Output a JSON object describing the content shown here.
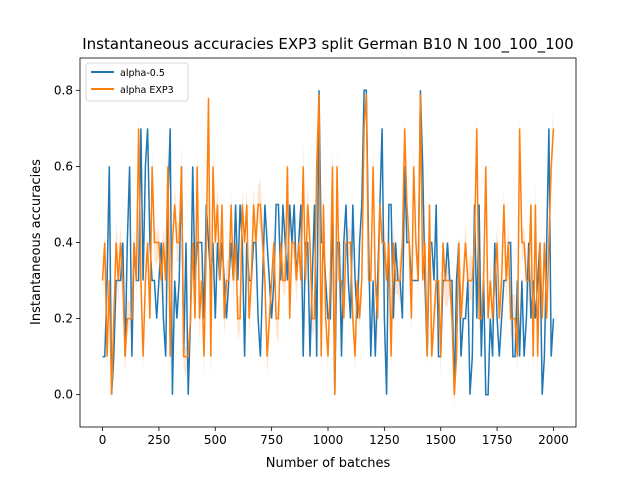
{
  "chart_data": {
    "type": "line",
    "title": "Instantaneous accuracies EXP3 split German B10 N 100_100_100",
    "xlabel": "Number of batches",
    "ylabel": "Instantaneous accuracies",
    "xlim": [
      -100,
      2100
    ],
    "ylim": [
      -0.085,
      0.885
    ],
    "xticks": [
      0,
      250,
      500,
      750,
      1000,
      1250,
      1500,
      1750,
      2000
    ],
    "xtick_labels": [
      "0",
      "250",
      "500",
      "750",
      "1000",
      "1250",
      "1500",
      "1750",
      "2000"
    ],
    "yticks": [
      0.0,
      0.2,
      0.4,
      0.6,
      0.8
    ],
    "ytick_labels": [
      "0.0",
      "0.2",
      "0.4",
      "0.6",
      "0.8"
    ],
    "grid": false,
    "legend_position": "top-left",
    "series": [
      {
        "name": "alpha-0.5",
        "color": "#1f77b4",
        "step": 10,
        "value_levels": [
          0.0,
          0.1,
          0.2,
          0.3,
          0.4,
          0.5,
          0.6,
          0.7,
          0.8
        ],
        "typical_range": [
          0.1,
          0.6
        ],
        "peaks": [
          {
            "x": 30,
            "y": 0.6
          },
          {
            "x": 170,
            "y": 0.7
          },
          {
            "x": 300,
            "y": 0.7
          },
          {
            "x": 960,
            "y": 0.8
          },
          {
            "x": 1170,
            "y": 0.8
          },
          {
            "x": 1410,
            "y": 0.8
          },
          {
            "x": 1980,
            "y": 0.7
          }
        ],
        "troughs": [
          {
            "x": 40,
            "y": 0.0
          },
          {
            "x": 380,
            "y": 0.0
          },
          {
            "x": 1030,
            "y": 0.0
          },
          {
            "x": 1260,
            "y": 0.0
          },
          {
            "x": 1560,
            "y": 0.0
          },
          {
            "x": 1700,
            "y": 0.0
          },
          {
            "x": 1950,
            "y": 0.0
          }
        ]
      },
      {
        "name": "alpha EXP3",
        "color": "#ff7f0e",
        "band_color": "#ff7f0e",
        "step": 10,
        "value_levels": [
          0.0,
          0.1,
          0.2,
          0.3,
          0.4,
          0.5,
          0.6,
          0.7,
          0.8
        ],
        "typical_range": [
          0.1,
          0.6
        ],
        "peaks": [
          {
            "x": 470,
            "y": 0.78
          },
          {
            "x": 960,
            "y": 0.79
          },
          {
            "x": 1170,
            "y": 0.79
          },
          {
            "x": 1410,
            "y": 0.79
          },
          {
            "x": 1660,
            "y": 0.7
          }
        ],
        "troughs": [
          {
            "x": 40,
            "y": 0.0
          },
          {
            "x": 1030,
            "y": 0.0
          },
          {
            "x": 1560,
            "y": 0.0
          }
        ],
        "band_range": [
          -0.04,
          0.81
        ]
      }
    ]
  }
}
